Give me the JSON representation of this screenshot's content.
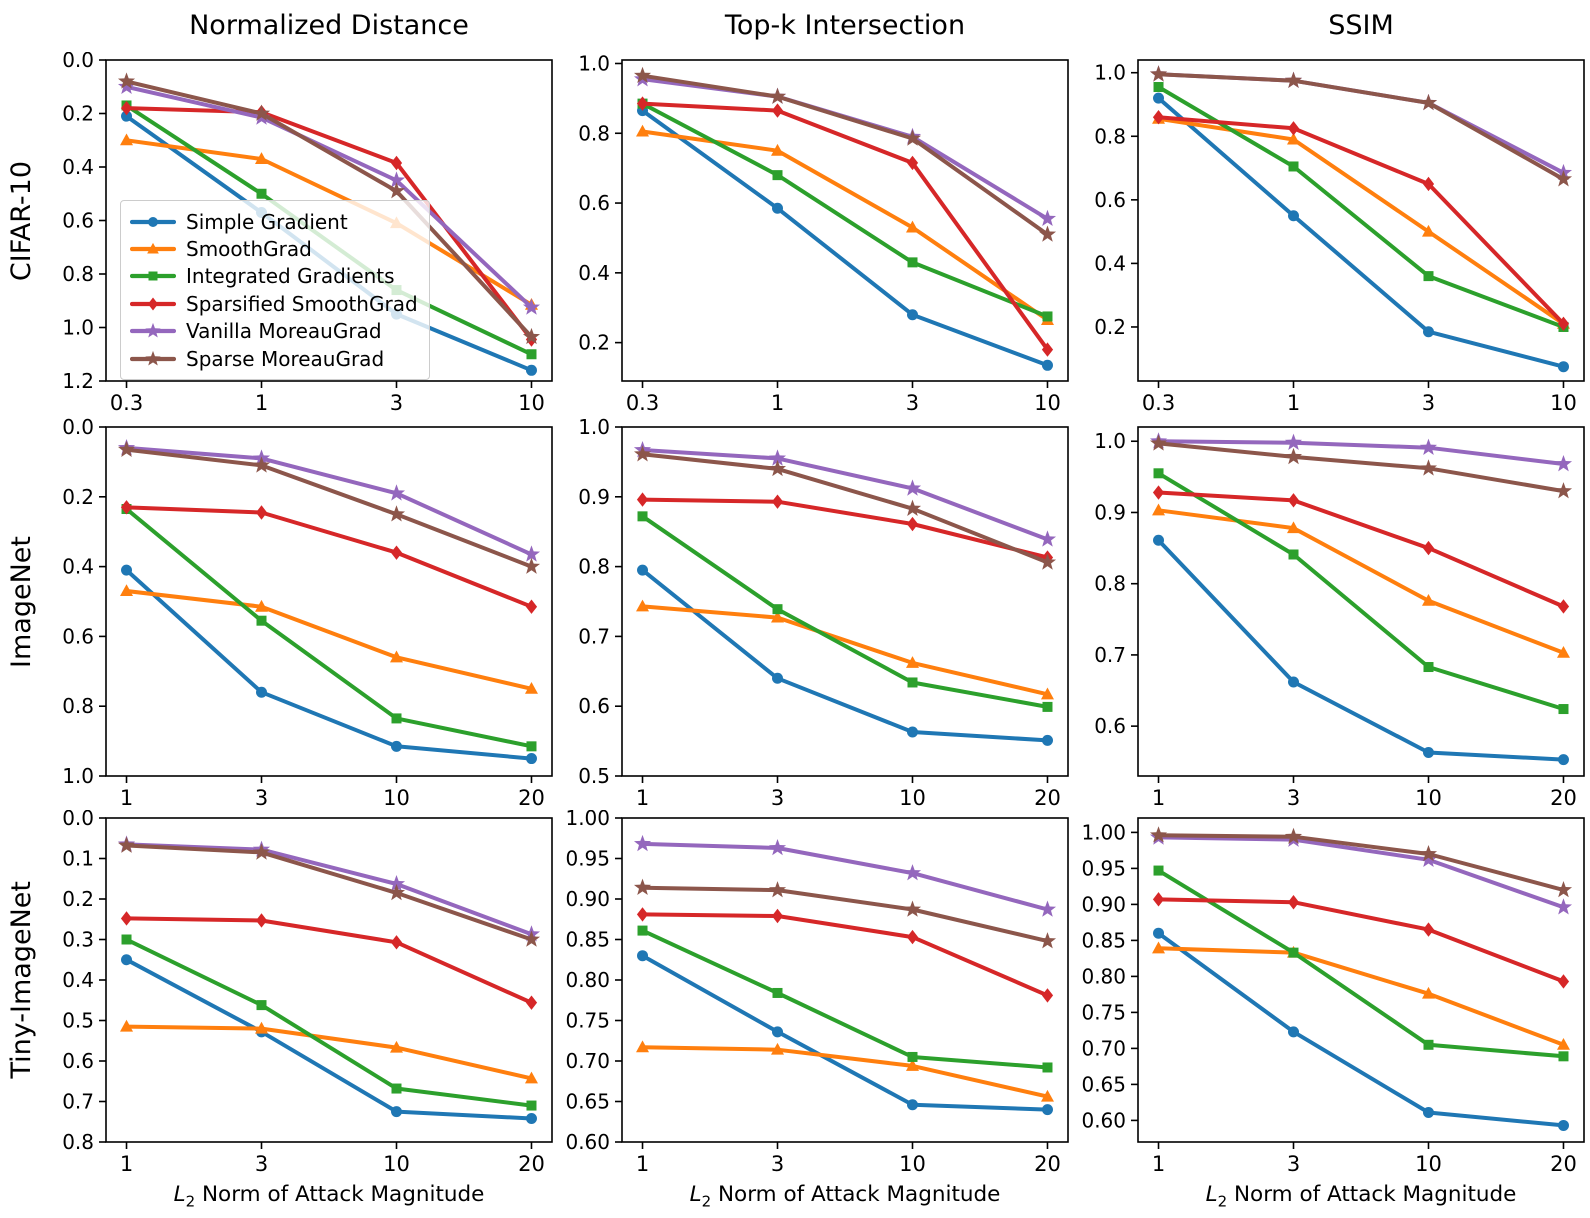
{
  "figure": {
    "column_titles": [
      "Normalized Distance",
      "Top-k Intersection",
      "SSIM"
    ],
    "row_labels": [
      "CIFAR-10",
      "ImageNet",
      "Tiny-ImageNet"
    ],
    "xlabel": {
      "var": "L",
      "sub": "2",
      "rest": "Norm of Attack Magnitude"
    }
  },
  "legend": {
    "position": "lower-left of first subplot",
    "series": [
      {
        "name": "Simple Gradient",
        "color": "#1f77b4",
        "marker": "circle"
      },
      {
        "name": "SmoothGrad",
        "color": "#ff7f0e",
        "marker": "triangle-up"
      },
      {
        "name": "Integrated Gradients",
        "color": "#2ca02c",
        "marker": "square"
      },
      {
        "name": "Sparsified SmoothGrad",
        "color": "#d62728",
        "marker": "diamond"
      },
      {
        "name": "Vanilla MoreauGrad",
        "color": "#9467bd",
        "marker": "star"
      },
      {
        "name": "Sparse MoreauGrad",
        "color": "#8c564b",
        "marker": "star"
      }
    ]
  },
  "chart_data": [
    {
      "type": "line",
      "dataset": "CIFAR-10",
      "metric": "Normalized Distance",
      "x_tick_labels": [
        "0.3",
        "1",
        "3",
        "10"
      ],
      "y_tick_labels": [
        "0.0",
        "0.2",
        "0.4",
        "0.6",
        "0.8",
        "1.0",
        "1.2"
      ],
      "ylim_top": 0.0,
      "ylim_bottom": 1.2,
      "y_axis_inverted": true,
      "grid": false,
      "series": [
        {
          "name": "Simple Gradient",
          "values": [
            0.21,
            0.57,
            0.95,
            1.16
          ]
        },
        {
          "name": "SmoothGrad",
          "values": [
            0.3,
            0.37,
            0.61,
            0.915
          ]
        },
        {
          "name": "Integrated Gradients",
          "values": [
            0.17,
            0.5,
            0.86,
            1.1
          ]
        },
        {
          "name": "Sparsified SmoothGrad",
          "values": [
            0.18,
            0.195,
            0.385,
            1.045
          ]
        },
        {
          "name": "Vanilla MoreauGrad",
          "values": [
            0.1,
            0.215,
            0.45,
            0.925
          ]
        },
        {
          "name": "Sparse MoreauGrad",
          "values": [
            0.08,
            0.2,
            0.49,
            1.035
          ]
        }
      ]
    },
    {
      "type": "line",
      "dataset": "CIFAR-10",
      "metric": "Top-k Intersection",
      "x_tick_labels": [
        "0.3",
        "1",
        "3",
        "10"
      ],
      "y_tick_labels": [
        "1.0",
        "0.8",
        "0.6",
        "0.4",
        "0.2"
      ],
      "ylim_top": 1.01,
      "ylim_bottom": 0.09,
      "y_axis_inverted": false,
      "grid": false,
      "series": [
        {
          "name": "Simple Gradient",
          "values": [
            0.865,
            0.585,
            0.28,
            0.135
          ]
        },
        {
          "name": "SmoothGrad",
          "values": [
            0.805,
            0.75,
            0.53,
            0.265
          ]
        },
        {
          "name": "Integrated Gradients",
          "values": [
            0.885,
            0.68,
            0.43,
            0.275
          ]
        },
        {
          "name": "Sparsified SmoothGrad",
          "values": [
            0.885,
            0.865,
            0.715,
            0.18
          ]
        },
        {
          "name": "Vanilla MoreauGrad",
          "values": [
            0.955,
            0.905,
            0.79,
            0.555
          ]
        },
        {
          "name": "Sparse MoreauGrad",
          "values": [
            0.965,
            0.905,
            0.785,
            0.51
          ]
        }
      ]
    },
    {
      "type": "line",
      "dataset": "CIFAR-10",
      "metric": "SSIM",
      "x_tick_labels": [
        "0.3",
        "1",
        "3",
        "10"
      ],
      "y_tick_labels": [
        "1.0",
        "0.8",
        "0.6",
        "0.4",
        "0.2"
      ],
      "ylim_top": 1.04,
      "ylim_bottom": 0.03,
      "y_axis_inverted": false,
      "grid": false,
      "series": [
        {
          "name": "Simple Gradient",
          "values": [
            0.92,
            0.55,
            0.185,
            0.075
          ]
        },
        {
          "name": "SmoothGrad",
          "values": [
            0.855,
            0.79,
            0.5,
            0.21
          ]
        },
        {
          "name": "Integrated Gradients",
          "values": [
            0.955,
            0.705,
            0.36,
            0.2
          ]
        },
        {
          "name": "Sparsified SmoothGrad",
          "values": [
            0.86,
            0.825,
            0.65,
            0.21
          ]
        },
        {
          "name": "Vanilla MoreauGrad",
          "values": [
            0.995,
            0.975,
            0.905,
            0.685
          ]
        },
        {
          "name": "Sparse MoreauGrad",
          "values": [
            0.995,
            0.975,
            0.905,
            0.665
          ]
        }
      ]
    },
    {
      "type": "line",
      "dataset": "ImageNet",
      "metric": "Normalized Distance",
      "x_tick_labels": [
        "1",
        "3",
        "10",
        "20"
      ],
      "y_tick_labels": [
        "0.0",
        "0.2",
        "0.4",
        "0.6",
        "0.8",
        "1.0"
      ],
      "ylim_top": 0.0,
      "ylim_bottom": 1.0,
      "y_axis_inverted": true,
      "grid": false,
      "series": [
        {
          "name": "Simple Gradient",
          "values": [
            0.41,
            0.76,
            0.915,
            0.95
          ]
        },
        {
          "name": "SmoothGrad",
          "values": [
            0.47,
            0.515,
            0.66,
            0.75
          ]
        },
        {
          "name": "Integrated Gradients",
          "values": [
            0.235,
            0.555,
            0.835,
            0.915
          ]
        },
        {
          "name": "Sparsified SmoothGrad",
          "values": [
            0.23,
            0.245,
            0.36,
            0.515
          ]
        },
        {
          "name": "Vanilla MoreauGrad",
          "values": [
            0.06,
            0.09,
            0.19,
            0.365
          ]
        },
        {
          "name": "Sparse MoreauGrad",
          "values": [
            0.065,
            0.11,
            0.25,
            0.4
          ]
        }
      ]
    },
    {
      "type": "line",
      "dataset": "ImageNet",
      "metric": "Top-k Intersection",
      "x_tick_labels": [
        "1",
        "3",
        "10",
        "20"
      ],
      "y_tick_labels": [
        "1.0",
        "0.9",
        "0.8",
        "0.7",
        "0.6",
        "0.5"
      ],
      "ylim_top": 1.0,
      "ylim_bottom": 0.5,
      "y_axis_inverted": false,
      "grid": false,
      "series": [
        {
          "name": "Simple Gradient",
          "values": [
            0.795,
            0.64,
            0.563,
            0.551
          ]
        },
        {
          "name": "SmoothGrad",
          "values": [
            0.743,
            0.727,
            0.662,
            0.617
          ]
        },
        {
          "name": "Integrated Gradients",
          "values": [
            0.872,
            0.739,
            0.634,
            0.599
          ]
        },
        {
          "name": "Sparsified SmoothGrad",
          "values": [
            0.896,
            0.893,
            0.861,
            0.813
          ]
        },
        {
          "name": "Vanilla MoreauGrad",
          "values": [
            0.967,
            0.955,
            0.912,
            0.839
          ]
        },
        {
          "name": "Sparse MoreauGrad",
          "values": [
            0.961,
            0.94,
            0.883,
            0.806
          ]
        }
      ]
    },
    {
      "type": "line",
      "dataset": "ImageNet",
      "metric": "SSIM",
      "x_tick_labels": [
        "1",
        "3",
        "10",
        "20"
      ],
      "y_tick_labels": [
        "1.0",
        "0.9",
        "0.8",
        "0.7",
        "0.6"
      ],
      "ylim_top": 1.02,
      "ylim_bottom": 0.53,
      "y_axis_inverted": false,
      "grid": false,
      "series": [
        {
          "name": "Simple Gradient",
          "values": [
            0.861,
            0.662,
            0.563,
            0.553
          ]
        },
        {
          "name": "SmoothGrad",
          "values": [
            0.903,
            0.878,
            0.776,
            0.703
          ]
        },
        {
          "name": "Integrated Gradients",
          "values": [
            0.955,
            0.841,
            0.683,
            0.624
          ]
        },
        {
          "name": "Sparsified SmoothGrad",
          "values": [
            0.928,
            0.917,
            0.85,
            0.768
          ]
        },
        {
          "name": "Vanilla MoreauGrad",
          "values": [
            1.0,
            0.998,
            0.991,
            0.968
          ]
        },
        {
          "name": "Sparse MoreauGrad",
          "values": [
            0.997,
            0.978,
            0.962,
            0.93
          ]
        }
      ]
    },
    {
      "type": "line",
      "dataset": "Tiny-ImageNet",
      "metric": "Normalized Distance",
      "x_tick_labels": [
        "1",
        "3",
        "10",
        "20"
      ],
      "y_tick_labels": [
        "0.0",
        "0.1",
        "0.2",
        "0.3",
        "0.4",
        "0.5",
        "0.6",
        "0.7",
        "0.8"
      ],
      "ylim_top": 0.0,
      "ylim_bottom": 0.8,
      "y_axis_inverted": true,
      "grid": false,
      "series": [
        {
          "name": "Simple Gradient",
          "values": [
            0.35,
            0.528,
            0.725,
            0.742
          ]
        },
        {
          "name": "SmoothGrad",
          "values": [
            0.515,
            0.52,
            0.567,
            0.643
          ]
        },
        {
          "name": "Integrated Gradients",
          "values": [
            0.3,
            0.462,
            0.668,
            0.71
          ]
        },
        {
          "name": "Sparsified SmoothGrad",
          "values": [
            0.248,
            0.253,
            0.307,
            0.456
          ]
        },
        {
          "name": "Vanilla MoreauGrad",
          "values": [
            0.065,
            0.078,
            0.163,
            0.287
          ]
        },
        {
          "name": "Sparse MoreauGrad",
          "values": [
            0.068,
            0.085,
            0.185,
            0.3
          ]
        }
      ]
    },
    {
      "type": "line",
      "dataset": "Tiny-ImageNet",
      "metric": "Top-k Intersection",
      "x_tick_labels": [
        "1",
        "3",
        "10",
        "20"
      ],
      "y_tick_labels": [
        "1.00",
        "0.95",
        "0.90",
        "0.85",
        "0.80",
        "0.75",
        "0.70",
        "0.65",
        "0.60"
      ],
      "ylim_top": 1.0,
      "ylim_bottom": 0.6,
      "y_axis_inverted": false,
      "grid": false,
      "series": [
        {
          "name": "Simple Gradient",
          "values": [
            0.83,
            0.736,
            0.646,
            0.64
          ]
        },
        {
          "name": "SmoothGrad",
          "values": [
            0.717,
            0.714,
            0.694,
            0.656
          ]
        },
        {
          "name": "Integrated Gradients",
          "values": [
            0.861,
            0.784,
            0.705,
            0.692
          ]
        },
        {
          "name": "Sparsified SmoothGrad",
          "values": [
            0.881,
            0.879,
            0.853,
            0.781
          ]
        },
        {
          "name": "Vanilla MoreauGrad",
          "values": [
            0.968,
            0.963,
            0.932,
            0.887
          ]
        },
        {
          "name": "Sparse MoreauGrad",
          "values": [
            0.914,
            0.911,
            0.887,
            0.848
          ]
        }
      ]
    },
    {
      "type": "line",
      "dataset": "Tiny-ImageNet",
      "metric": "SSIM",
      "x_tick_labels": [
        "1",
        "3",
        "10",
        "20"
      ],
      "y_tick_labels": [
        "1.00",
        "0.95",
        "0.90",
        "0.85",
        "0.80",
        "0.75",
        "0.70",
        "0.65",
        "0.60"
      ],
      "ylim_top": 1.02,
      "ylim_bottom": 0.57,
      "y_axis_inverted": false,
      "grid": false,
      "series": [
        {
          "name": "Simple Gradient",
          "values": [
            0.86,
            0.723,
            0.611,
            0.593
          ]
        },
        {
          "name": "SmoothGrad",
          "values": [
            0.839,
            0.833,
            0.776,
            0.705
          ]
        },
        {
          "name": "Integrated Gradients",
          "values": [
            0.947,
            0.833,
            0.705,
            0.689
          ]
        },
        {
          "name": "Sparsified SmoothGrad",
          "values": [
            0.907,
            0.903,
            0.865,
            0.793
          ]
        },
        {
          "name": "Vanilla MoreauGrad",
          "values": [
            0.993,
            0.99,
            0.962,
            0.896
          ]
        },
        {
          "name": "Sparse MoreauGrad",
          "values": [
            0.996,
            0.994,
            0.97,
            0.92
          ]
        }
      ]
    }
  ]
}
